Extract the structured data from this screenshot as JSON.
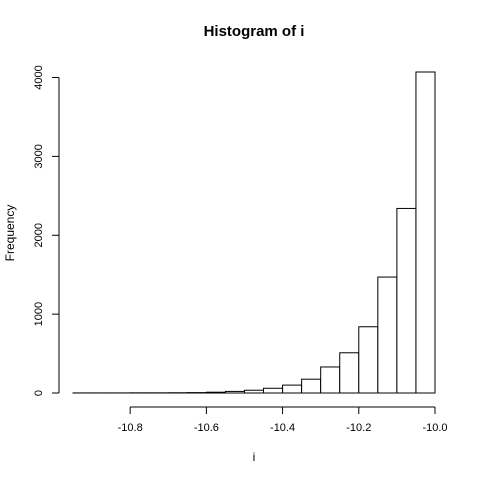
{
  "chart_data": {
    "type": "bar",
    "title": "Histogram of i",
    "xlabel": "i",
    "ylabel": "Frequency",
    "bins": [
      {
        "x0": -10.95,
        "x1": -10.9,
        "count": 1
      },
      {
        "x0": -10.9,
        "x1": -10.85,
        "count": 1
      },
      {
        "x0": -10.85,
        "x1": -10.8,
        "count": 1
      },
      {
        "x0": -10.8,
        "x1": -10.75,
        "count": 2
      },
      {
        "x0": -10.75,
        "x1": -10.7,
        "count": 2
      },
      {
        "x0": -10.7,
        "x1": -10.65,
        "count": 3
      },
      {
        "x0": -10.65,
        "x1": -10.6,
        "count": 5
      },
      {
        "x0": -10.6,
        "x1": -10.55,
        "count": 10
      },
      {
        "x0": -10.55,
        "x1": -10.5,
        "count": 20
      },
      {
        "x0": -10.5,
        "x1": -10.45,
        "count": 35
      },
      {
        "x0": -10.45,
        "x1": -10.4,
        "count": 60
      },
      {
        "x0": -10.4,
        "x1": -10.35,
        "count": 100
      },
      {
        "x0": -10.35,
        "x1": -10.3,
        "count": 175
      },
      {
        "x0": -10.3,
        "x1": -10.25,
        "count": 330
      },
      {
        "x0": -10.25,
        "x1": -10.2,
        "count": 510
      },
      {
        "x0": -10.2,
        "x1": -10.15,
        "count": 840
      },
      {
        "x0": -10.15,
        "x1": -10.1,
        "count": 1470
      },
      {
        "x0": -10.1,
        "x1": -10.05,
        "count": 2340
      },
      {
        "x0": -10.05,
        "x1": -10.0,
        "count": 4070
      }
    ],
    "x_ticks": [
      -10.8,
      -10.6,
      -10.4,
      -10.2,
      -10.0
    ],
    "x_tick_labels": [
      "-10.8",
      "-10.6",
      "-10.4",
      "-10.2",
      "-10.0"
    ],
    "y_ticks": [
      0,
      1000,
      2000,
      3000,
      4000
    ],
    "y_tick_labels": [
      "0",
      "1000",
      "2000",
      "3000",
      "4000"
    ],
    "xlim": [
      -10.95,
      -10.0
    ],
    "ylim": [
      0,
      4070
    ],
    "grid": false,
    "fill_color": "#ffffff",
    "stroke_color": "#000000"
  }
}
